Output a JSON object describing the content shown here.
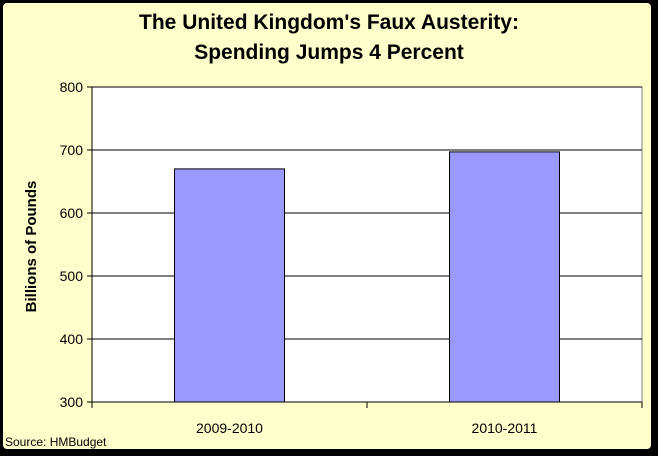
{
  "chart_data": {
    "type": "bar",
    "title_lines": [
      "The United Kingdom's Faux Austerity:",
      "Spending Jumps 4 Percent"
    ],
    "xlabel": "",
    "ylabel": "Billions of Pounds",
    "categories": [
      "2009-2010",
      "2010-2011"
    ],
    "values": [
      670,
      697
    ],
    "ylim": [
      300,
      800
    ],
    "yticks": [
      300,
      400,
      500,
      600,
      700,
      800
    ],
    "grid": true,
    "legend": "none",
    "source": "Source: HMBudget"
  },
  "colors": {
    "background": "#ffffcc",
    "plot_area": "#ffffff",
    "bar_fill": "#9999ff",
    "bar_stroke": "#000000",
    "gridline": "#000000"
  }
}
